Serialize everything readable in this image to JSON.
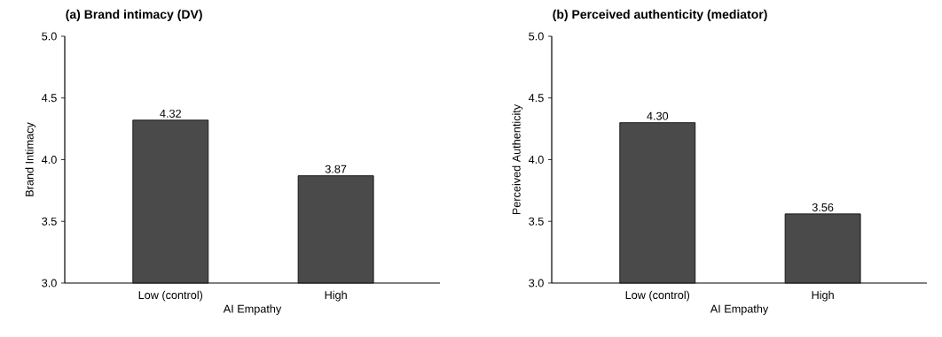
{
  "chart_data": [
    {
      "type": "bar",
      "title": "(a) Brand intimacy (DV)",
      "xlabel": "AI Empathy",
      "ylabel": "Brand Intimacy",
      "categories": [
        "Low (control)",
        "High"
      ],
      "values": [
        4.32,
        3.87
      ],
      "value_labels": [
        "4.32",
        "3.87"
      ],
      "color": "#4a4a4a",
      "ylim": [
        3.0,
        5.0
      ],
      "yticks": [
        {
          "value": 3.0,
          "label": "3.0"
        },
        {
          "value": 3.5,
          "label": "3.5"
        },
        {
          "value": 4.0,
          "label": "4.0"
        },
        {
          "value": 4.5,
          "label": "4.5"
        },
        {
          "value": 5.0,
          "label": "5.0"
        }
      ],
      "grid": false
    },
    {
      "type": "bar",
      "title": "(b) Perceived authenticity (mediator)",
      "xlabel": "AI Empathy",
      "ylabel": "Perceived Authenticity",
      "categories": [
        "Low (control)",
        "High"
      ],
      "values": [
        4.3,
        3.56
      ],
      "value_labels": [
        "4.30",
        "3.56"
      ],
      "color": "#4a4a4a",
      "ylim": [
        3.0,
        5.0
      ],
      "yticks": [
        {
          "value": 3.0,
          "label": "3.0"
        },
        {
          "value": 3.5,
          "label": "3.5"
        },
        {
          "value": 4.0,
          "label": "4.0"
        },
        {
          "value": 4.5,
          "label": "4.5"
        },
        {
          "value": 5.0,
          "label": "5.0"
        }
      ],
      "grid": false
    }
  ]
}
